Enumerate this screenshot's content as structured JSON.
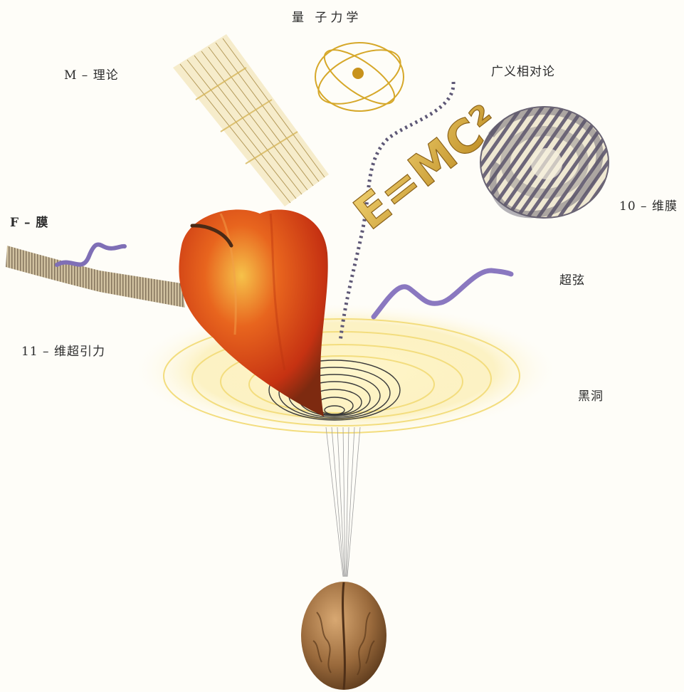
{
  "labels": {
    "quantum_mechanics": "量 子力学",
    "m_theory": "M – 理论",
    "general_relativity": "广义相对论",
    "f_brane": "F – 膜",
    "ten_brane": "10 – 维膜",
    "superstring": "超弦",
    "sugra_11d": "11 – 维超引力",
    "black_hole": "黑洞"
  },
  "equation": "E=MC²",
  "colors": {
    "apple": "#d8401a",
    "gold": "#d6a82a",
    "string": "#8a78c0",
    "walnut": "#8a5a2e",
    "background": "#fefdf8"
  }
}
